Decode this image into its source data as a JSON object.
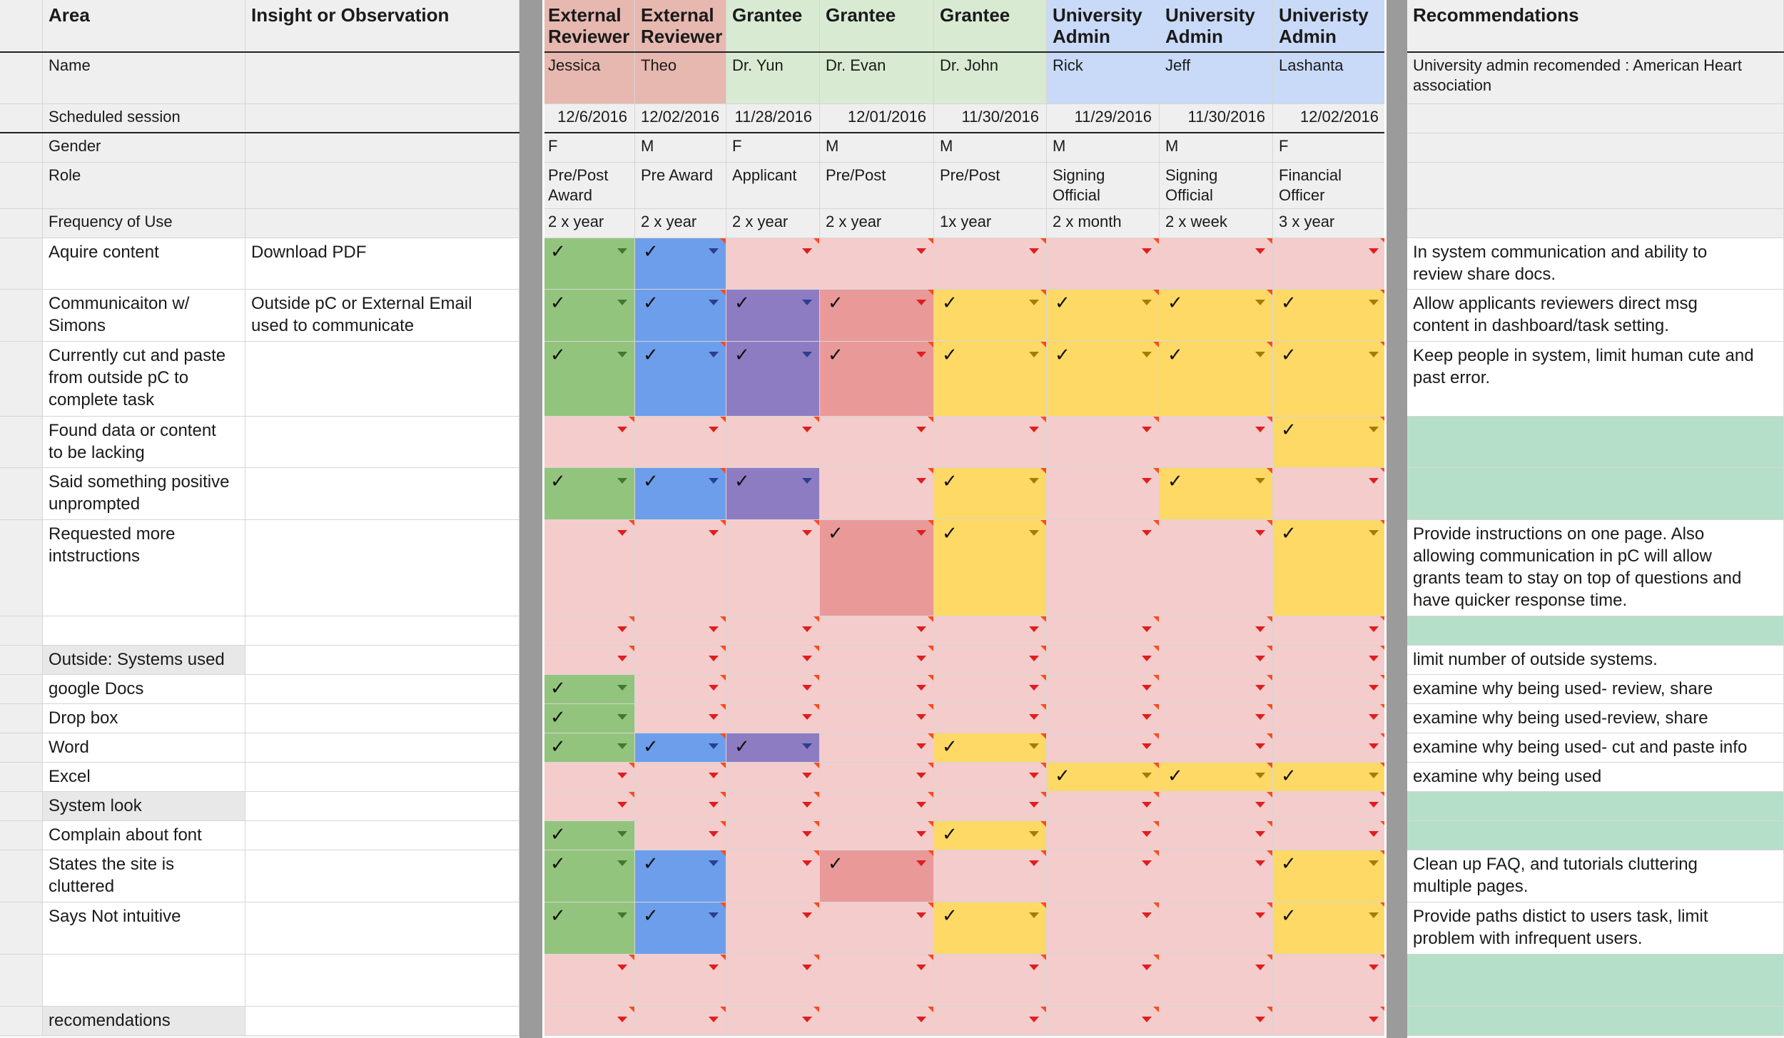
{
  "colors": {
    "red": "#f4cccc",
    "green": "#93c47d",
    "blue": "#6d9eeb",
    "purple": "#8e7cc3",
    "darkred": "#ea9999",
    "yellow": "#ffd966",
    "mint": "#b6dfca",
    "hdr_red": "#e6b8af",
    "hdr_green": "#d9ead3",
    "hdr_blue": "#c9daf8",
    "grey": "#efefef",
    "white": "#ffffff"
  },
  "header": {
    "area": "Area",
    "insight": "Insight or Observation",
    "recommendations": "Recommendations",
    "participants": [
      "External\nReviewer",
      "External\nReviewer",
      "Grantee",
      "Grantee",
      "Grantee",
      "University\nAdmin",
      "University\nAdmin",
      "Univeristy\nAdmin"
    ]
  },
  "check_symbol": "✓",
  "profile": [
    {
      "label": "Name",
      "values": [
        "Jessica",
        "Theo",
        "Dr. Yun",
        "Dr. Evan",
        "Dr. John",
        "Rick",
        "Jeff",
        "Lashanta"
      ],
      "rec": "University admin recomended : American Heart association"
    },
    {
      "label": "Scheduled session",
      "values": [
        "12/6/2016",
        "12/02/2016",
        "11/28/2016",
        "12/01/2016",
        "11/30/2016",
        "11/29/2016",
        "11/30/2016",
        "12/02/2016"
      ],
      "rec": ""
    },
    {
      "label": "Gender",
      "values": [
        "F",
        "M",
        "F",
        "M",
        "M",
        "M",
        "M",
        "F"
      ],
      "rec": ""
    },
    {
      "label": "Role",
      "values": [
        "Pre/Post\nAward",
        "Pre Award",
        "Applicant",
        "Pre/Post",
        "Pre/Post",
        "Signing\nOfficial",
        "Signing\nOfficial",
        "Financial\nOfficer"
      ],
      "rec": ""
    },
    {
      "label": "Frequency of Use",
      "values": [
        "2 x year",
        "2 x year",
        "2 x year",
        "2 x year",
        "1x year",
        "2 x month",
        "2 x week",
        "3 x year"
      ],
      "rec": ""
    }
  ],
  "rows": [
    {
      "area": "Aquire content",
      "insight": "Download PDF",
      "checks": "gb......",
      "rec": "In system communication and ability to\nreview share docs."
    },
    {
      "area": "Communicaiton w/\nSimons",
      "insight": "Outside pC or External Email\nused to communicate",
      "checks": "gbpdyyyy",
      "rec": "Allow applicants reviewers direct msg\ncontent in dashboard/task setting."
    },
    {
      "area": "Currently cut and paste\nfrom outside pC to\ncomplete task",
      "insight": "",
      "checks": "gbpdyyyy",
      "rec": "Keep people in system, limit human cute and\npast error."
    },
    {
      "area": "Found data or content\nto be lacking",
      "insight": "",
      "checks": ".......y",
      "rec": ""
    },
    {
      "area": "Said something positive\nunprompted",
      "insight": "",
      "checks": "gbp.y.y.",
      "rec": ""
    },
    {
      "area": "Requested more\nintstructions",
      "insight": "",
      "checks": "...dy..y",
      "rec": "Provide instructions on one page. Also\nallowing communication in pC will allow\ngrants team to stay on top of questions and\nhave quicker response time."
    },
    {
      "area": "",
      "insight": "",
      "checks": "........",
      "rec": ""
    },
    {
      "area": "Outside: Systems used",
      "insight": "",
      "checks": "........",
      "rec": "limit number of outside systems."
    },
    {
      "area": "google Docs",
      "insight": "",
      "checks": "g.......",
      "rec": "examine why being used- review, share"
    },
    {
      "area": "Drop box",
      "insight": "",
      "checks": "g.......",
      "rec": "examine why being used-review, share"
    },
    {
      "area": "Word",
      "insight": "",
      "checks": "gbp.y...",
      "rec": "examine why being used- cut and paste info"
    },
    {
      "area": "Excel",
      "insight": "",
      "checks": ".....yyy",
      "rec": "examine why being used"
    },
    {
      "area": "System look",
      "insight": "",
      "checks": "........",
      "rec": ""
    },
    {
      "area": "Complain about font\nsize",
      "insight": "",
      "checks": "g...y...",
      "rec": ""
    },
    {
      "area": "States the site is\ncluttered",
      "insight": "",
      "checks": "gb.d...y",
      "rec": "Clean up FAQ, and tutorials cluttering\nmultiple pages."
    },
    {
      "area": "Says Not intuitive",
      "insight": "",
      "checks": "gb..y..y",
      "rec": "Provide paths distict to users task, limit\nproblem with infrequent users."
    },
    {
      "area": "",
      "insight": "",
      "checks": "........",
      "rec": ""
    },
    {
      "area": "recomendations",
      "insight": "",
      "checks": "........",
      "rec": ""
    }
  ]
}
